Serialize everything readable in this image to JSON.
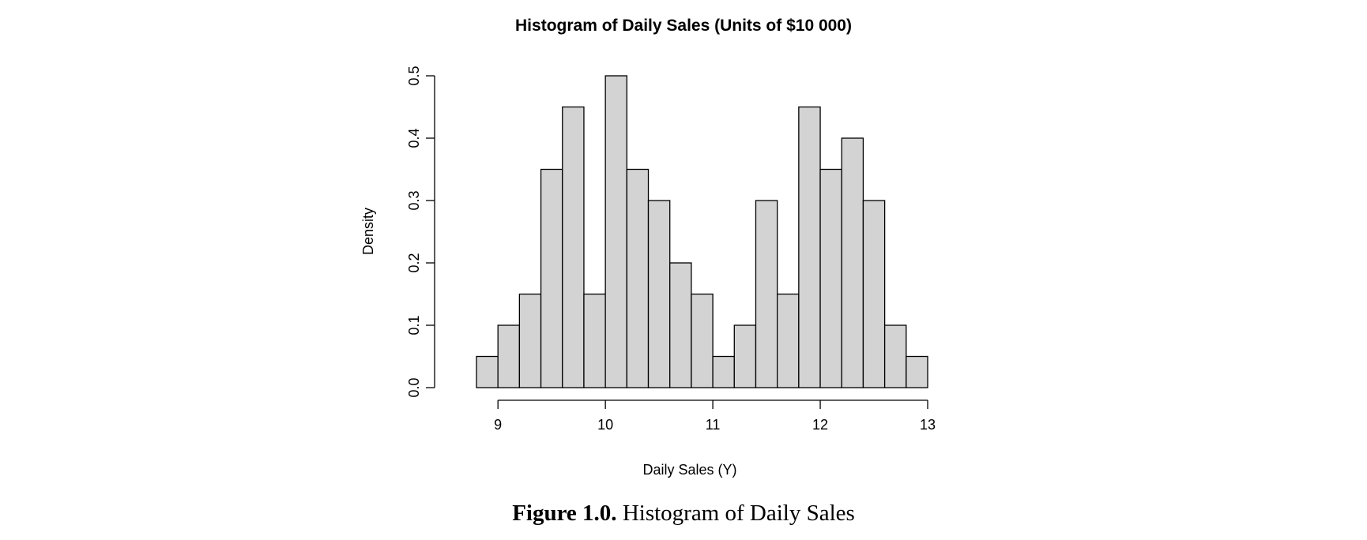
{
  "caption": {
    "label": "Figure 1.0.",
    "text": "Histogram of Daily Sales"
  },
  "chart_data": {
    "type": "bar",
    "title": "Histogram of Daily Sales (Units of $10 000)",
    "xlabel": "Daily Sales (Y)",
    "ylabel": "Density",
    "xlim": [
      8.8,
      13.0
    ],
    "ylim": [
      0,
      0.5
    ],
    "bin_width": 0.2,
    "bins": [
      {
        "x0": 8.8,
        "x1": 9.0,
        "density": 0.05
      },
      {
        "x0": 9.0,
        "x1": 9.2,
        "density": 0.1
      },
      {
        "x0": 9.2,
        "x1": 9.4,
        "density": 0.15
      },
      {
        "x0": 9.4,
        "x1": 9.6,
        "density": 0.35
      },
      {
        "x0": 9.6,
        "x1": 9.8,
        "density": 0.45
      },
      {
        "x0": 9.8,
        "x1": 10.0,
        "density": 0.15
      },
      {
        "x0": 10.0,
        "x1": 10.2,
        "density": 0.5
      },
      {
        "x0": 10.2,
        "x1": 10.4,
        "density": 0.35
      },
      {
        "x0": 10.4,
        "x1": 10.6,
        "density": 0.3
      },
      {
        "x0": 10.6,
        "x1": 10.8,
        "density": 0.2
      },
      {
        "x0": 10.8,
        "x1": 11.0,
        "density": 0.15
      },
      {
        "x0": 11.0,
        "x1": 11.2,
        "density": 0.05
      },
      {
        "x0": 11.2,
        "x1": 11.4,
        "density": 0.1
      },
      {
        "x0": 11.4,
        "x1": 11.6,
        "density": 0.3
      },
      {
        "x0": 11.6,
        "x1": 11.8,
        "density": 0.15
      },
      {
        "x0": 11.8,
        "x1": 12.0,
        "density": 0.45
      },
      {
        "x0": 12.0,
        "x1": 12.2,
        "density": 0.35
      },
      {
        "x0": 12.2,
        "x1": 12.4,
        "density": 0.4
      },
      {
        "x0": 12.4,
        "x1": 12.6,
        "density": 0.3
      },
      {
        "x0": 12.6,
        "x1": 12.8,
        "density": 0.1
      },
      {
        "x0": 12.8,
        "x1": 13.0,
        "density": 0.05
      }
    ],
    "x_ticks": [
      9,
      10,
      11,
      12,
      13
    ],
    "x_tick_labels": [
      "9",
      "10",
      "11",
      "12",
      "13"
    ],
    "y_ticks": [
      0.0,
      0.1,
      0.2,
      0.3,
      0.4,
      0.5
    ],
    "y_tick_labels": [
      "0.0",
      "0.1",
      "0.2",
      "0.3",
      "0.4",
      "0.5"
    ],
    "grid": false,
    "bar_color": "#d3d3d3",
    "edge_color": "#000000"
  }
}
